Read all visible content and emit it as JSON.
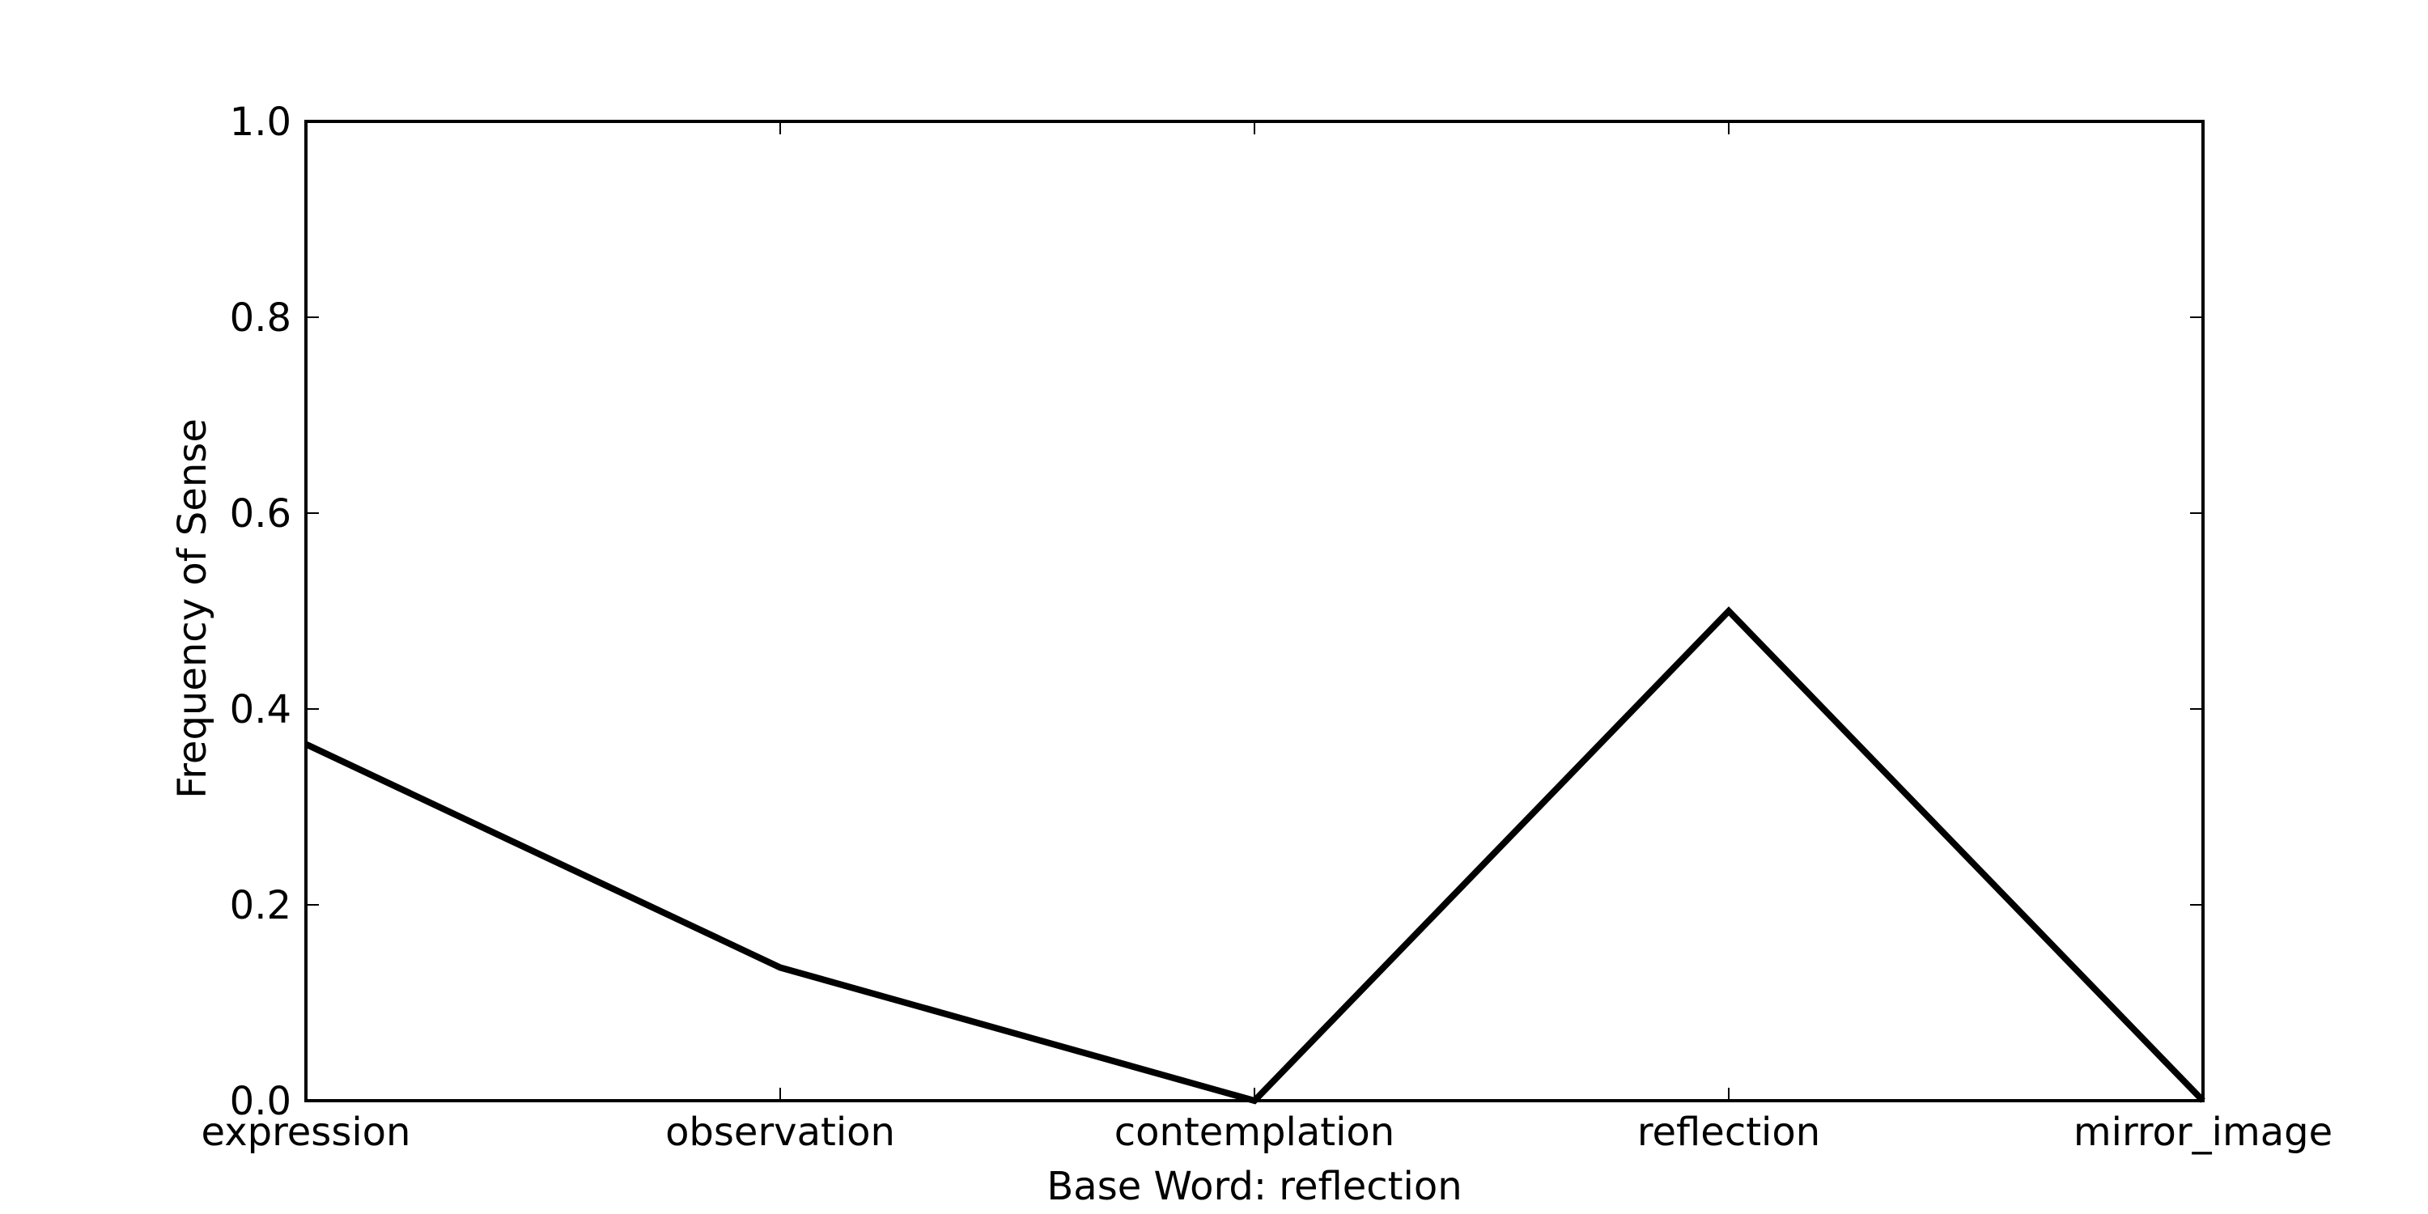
{
  "chart_data": {
    "type": "line",
    "title": "",
    "xlabel": "Base Word: reflection",
    "ylabel": "Frequency of Sense",
    "categories": [
      "expression",
      "observation",
      "contemplation",
      "reflection",
      "mirror_image"
    ],
    "series": [
      {
        "values": [
          0.364,
          0.136,
          0.0,
          0.5,
          0.0
        ]
      }
    ],
    "ylim": [
      0.0,
      1.0
    ],
    "yticks": [
      "0.0",
      "0.2",
      "0.4",
      "0.6",
      "0.8",
      "1.0"
    ],
    "grid": false,
    "legend": "none",
    "line_color": "#000000"
  }
}
